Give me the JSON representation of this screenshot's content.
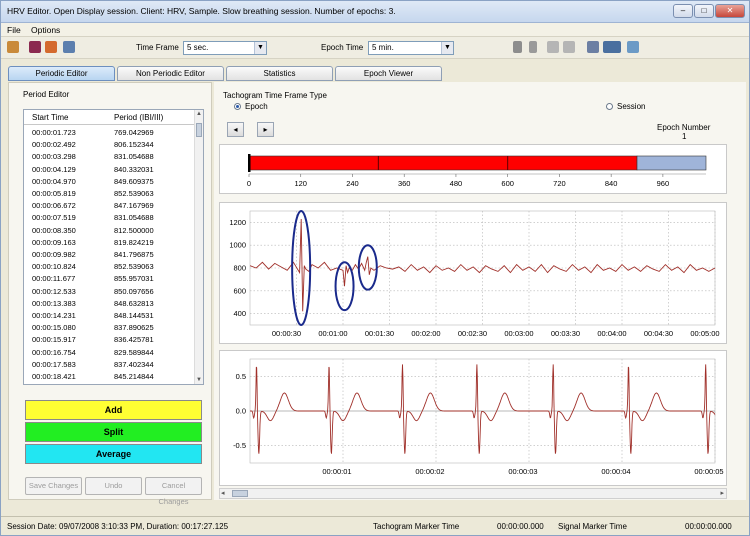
{
  "window": {
    "title": "HRV Editor. Open Display session. Client: HRV, Sample. Slow breathing session. Number of epochs: 3.",
    "min_symbol": "–",
    "max_symbol": "□",
    "close_symbol": "✕"
  },
  "menu": [
    "File",
    "Options"
  ],
  "toolbar": {
    "time_frame_label": "Time Frame",
    "time_frame_value": "5 sec.",
    "epoch_time_label": "Epoch Time",
    "epoch_time_value": "5 min."
  },
  "tabs": [
    {
      "label": "Periodic Editor",
      "active": true
    },
    {
      "label": "Non Periodic Editor",
      "active": false
    },
    {
      "label": "Statistics",
      "active": false
    },
    {
      "label": "Epoch Viewer",
      "active": false
    }
  ],
  "period_editor": {
    "title": "Period Editor",
    "col_start": "Start Time",
    "col_period": "Period (IBI/III)",
    "rows": [
      [
        "00:00:01.723",
        "769.042969"
      ],
      [
        "00:00:02.492",
        "806.152344"
      ],
      [
        "00:00:03.298",
        "831.054688"
      ],
      [
        "00:00:04.129",
        "840.332031"
      ],
      [
        "00:00:04.970",
        "849.609375"
      ],
      [
        "00:00:05.819",
        "852.539063"
      ],
      [
        "00:00:06.672",
        "847.167969"
      ],
      [
        "00:00:07.519",
        "831.054688"
      ],
      [
        "00:00:08.350",
        "812.500000"
      ],
      [
        "00:00:09.163",
        "819.824219"
      ],
      [
        "00:00:09.982",
        "841.796875"
      ],
      [
        "00:00:10.824",
        "852.539063"
      ],
      [
        "00:00:11.677",
        "855.957031"
      ],
      [
        "00:00:12.533",
        "850.097656"
      ],
      [
        "00:00:13.383",
        "848.632813"
      ],
      [
        "00:00:14.231",
        "848.144531"
      ],
      [
        "00:00:15.080",
        "837.890625"
      ],
      [
        "00:00:15.917",
        "836.425781"
      ],
      [
        "00:00:16.754",
        "829.589844"
      ],
      [
        "00:00:17.583",
        "837.402344"
      ],
      [
        "00:00:18.421",
        "845.214844"
      ]
    ],
    "add_label": "Add",
    "split_label": "Split",
    "average_label": "Average",
    "save_label": "Save Changes",
    "undo_label": "Undo",
    "cancel_label": "Cancel Changes",
    "colors": {
      "add": "#ffff33",
      "split": "#22ee22",
      "average": "#22e6f2"
    }
  },
  "tachogram": {
    "frame_type_label": "Tachogram Time Frame Type",
    "epoch_option": "Epoch",
    "session_option": "Session",
    "selected": "Epoch",
    "prev_symbol": "◂",
    "next_symbol": "▸",
    "epoch_number_label": "Epoch Number",
    "epoch_number_value": "1"
  },
  "chart_data": [
    {
      "type": "bar",
      "name": "epoch-timeline",
      "xlim": [
        0,
        1060
      ],
      "x_ticks": [
        0,
        120,
        240,
        360,
        480,
        600,
        720,
        840,
        960
      ],
      "segments": [
        {
          "start": 0,
          "end": 900,
          "color": "#ff0000",
          "state": "epochs"
        },
        {
          "start": 900,
          "end": 1060,
          "color": "#9fb4d9",
          "state": "remaining"
        }
      ],
      "dividers": [
        300,
        600
      ]
    },
    {
      "type": "line",
      "name": "tachogram",
      "ylim": [
        300,
        1300
      ],
      "y_ticks": [
        400,
        600,
        800,
        1000,
        1200
      ],
      "xlim": [
        0,
        300
      ],
      "x_tick_labels": [
        "00:00:30",
        "00:01:00",
        "00:01:30",
        "00:02:00",
        "00:02:30",
        "00:03:00",
        "00:03:30",
        "00:04:00",
        "00:04:30",
        "00:05:00"
      ],
      "grid": true,
      "color": "#a0302a",
      "x": [
        0,
        4,
        8,
        12,
        16,
        20,
        24,
        28,
        32,
        33,
        34,
        35,
        36,
        38,
        40,
        44,
        48,
        52,
        56,
        60,
        61,
        62,
        63,
        64,
        66,
        68,
        70,
        72,
        74,
        75,
        76,
        77,
        78,
        80,
        84,
        88,
        92,
        96,
        100,
        104,
        108,
        112,
        116,
        120,
        124,
        128,
        132,
        136,
        140,
        144,
        148,
        152,
        156,
        160,
        164,
        168,
        172,
        176,
        180,
        184,
        188,
        192,
        196,
        200,
        204,
        208,
        212,
        216,
        220,
        224,
        228,
        232,
        236,
        240,
        244,
        248,
        252,
        256,
        260,
        264,
        268,
        272,
        276,
        280,
        284,
        288,
        292,
        296,
        300
      ],
      "y": [
        820,
        800,
        850,
        790,
        840,
        810,
        780,
        850,
        760,
        1230,
        420,
        820,
        790,
        770,
        830,
        800,
        850,
        780,
        800,
        780,
        640,
        820,
        760,
        800,
        780,
        830,
        790,
        840,
        780,
        850,
        900,
        740,
        800,
        780,
        820,
        800,
        790,
        810,
        770,
        830,
        780,
        810,
        760,
        820,
        780,
        800,
        770,
        830,
        780,
        810,
        760,
        820,
        790,
        770,
        820,
        760,
        830,
        780,
        810,
        770,
        830,
        760,
        820,
        790,
        770,
        830,
        780,
        810,
        760,
        830,
        780,
        800,
        770,
        830,
        780,
        810,
        770,
        820,
        790,
        770,
        830,
        780,
        810,
        760,
        830,
        780,
        800,
        770,
        800
      ],
      "annotations": [
        {
          "shape": "ellipse",
          "x": 33,
          "y_range": [
            300,
            1300
          ]
        },
        {
          "shape": "ellipse",
          "x": 61,
          "y_range": [
            430,
            850
          ]
        },
        {
          "shape": "ellipse",
          "x": 76,
          "y_range": [
            610,
            1000
          ]
        }
      ]
    },
    {
      "type": "line",
      "name": "ecg-signal",
      "ylim": [
        -0.75,
        0.75
      ],
      "y_ticks": [
        0.5,
        0.0,
        -0.5
      ],
      "y_tick_labels": [
        "0.5",
        "0.0",
        "-0.5"
      ],
      "xlim": [
        0,
        5
      ],
      "x_tick_labels": [
        "00:00:01",
        "00:00:02",
        "00:00:03",
        "00:00:04",
        "00:00:05"
      ],
      "grid": true,
      "color": "#a0302a",
      "beat_times": [
        0.07,
        0.85,
        1.64,
        2.44,
        3.26,
        4.07,
        4.9
      ]
    }
  ],
  "status": {
    "session_label": "Session Date: 09/07/2008 3:10:33 PM, Duration: 00:17:27.125",
    "tachogram_marker_label": "Tachogram Marker Time",
    "tachogram_marker_value": "00:00:00.000",
    "signal_marker_label": "Signal Marker Time",
    "signal_marker_value": "00:00:00.000"
  }
}
